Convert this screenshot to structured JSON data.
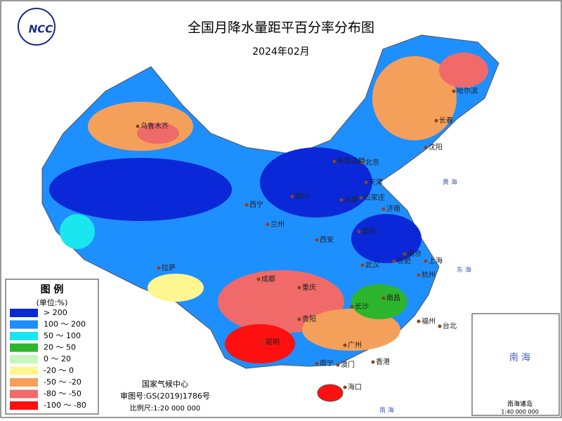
{
  "header": {
    "title": "全国月降水量距平百分率分布图",
    "date": "2024年02月"
  },
  "logo": "NCC",
  "legend": {
    "title": "图 例",
    "unit": "(单位:%)",
    "items": [
      {
        "label": "> 200",
        "color": "#0a28d8"
      },
      {
        "label": "100 ～ 200",
        "color": "#1e8fff"
      },
      {
        "label": "50 ～ 100",
        "color": "#19e6ee"
      },
      {
        "label": "20 ～ 50",
        "color": "#2db52d"
      },
      {
        "label": "0 ～ 20",
        "color": "#c8f5c0"
      },
      {
        "label": "-20 ～ 0",
        "color": "#fff68f"
      },
      {
        "label": "-50 ～ -20",
        "color": "#f5a05a"
      },
      {
        "label": "-80 ～ -50",
        "color": "#f06a6a"
      },
      {
        "label": "-100 ～ -80",
        "color": "#ff1010"
      }
    ]
  },
  "cities": [
    "乌鲁木齐",
    "哈尔滨",
    "长春",
    "沈阳",
    "呼和浩特",
    "北京",
    "天津",
    "石家庄",
    "太原",
    "银川",
    "西宁",
    "兰州",
    "济南",
    "郑州",
    "西安",
    "合肥",
    "南京",
    "上海",
    "武汉",
    "杭州",
    "拉萨",
    "成都",
    "重庆",
    "南昌",
    "长沙",
    "贵阳",
    "福州",
    "台北",
    "昆明",
    "南宁",
    "广州",
    "澳门",
    "香港",
    "海口"
  ],
  "seas": [
    "黄 海",
    "东 海",
    "南 海"
  ],
  "inset": {
    "title": "南海诸岛",
    "sea": "南 海",
    "scale": "1:40 000 000"
  },
  "footer": {
    "agency": "国家气候中心",
    "review_no": "审图号:GS(2019)1786号",
    "scale": "比例尺:1:20 000 000"
  }
}
